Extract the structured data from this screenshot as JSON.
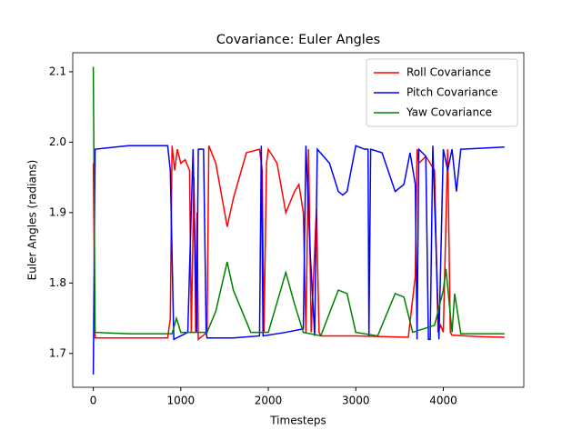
{
  "chart_data": {
    "type": "line",
    "title": "Covariance: Euler Angles",
    "xlabel": "Timesteps",
    "ylabel": "Euler Angles (radians)",
    "xlim": [
      -235,
      4920
    ],
    "ylim": [
      1.652,
      2.127
    ],
    "xticks": [
      0,
      1000,
      2000,
      3000,
      4000
    ],
    "yticks": [
      1.7,
      1.8,
      1.9,
      {
        "value": 2.0,
        "label": "2.0"
      },
      2.1
    ],
    "legend": "upper right",
    "series": [
      {
        "name": "Roll Covariance",
        "color": "#ff0000",
        "x": [
          0,
          20,
          400,
          850,
          880,
          900,
          930,
          960,
          1000,
          1050,
          1100,
          1120,
          1150,
          1170,
          1185,
          1200,
          1250,
          1300,
          1320,
          1400,
          1530,
          1600,
          1750,
          1900,
          1930,
          1950,
          1980,
          2000,
          2100,
          2200,
          2300,
          2350,
          2400,
          2430,
          2460,
          2490,
          2550,
          2580,
          2600,
          3000,
          3600,
          3680,
          3700,
          3720,
          3800,
          3900,
          3940,
          3970,
          4000,
          4050,
          4080,
          4100,
          4400,
          4700
        ],
        "values": [
          1.97,
          1.722,
          1.722,
          1.722,
          1.75,
          1.995,
          1.96,
          1.99,
          1.97,
          1.975,
          1.96,
          1.73,
          1.95,
          1.73,
          1.9,
          1.72,
          1.725,
          1.73,
          1.995,
          1.97,
          1.88,
          1.92,
          1.985,
          1.99,
          1.96,
          1.73,
          1.97,
          1.99,
          1.97,
          1.9,
          1.93,
          1.94,
          1.9,
          1.73,
          1.99,
          1.73,
          1.905,
          1.73,
          1.725,
          1.725,
          1.723,
          1.81,
          1.99,
          1.97,
          1.98,
          1.96,
          1.73,
          1.74,
          1.73,
          1.99,
          1.73,
          1.726,
          1.724,
          1.723
        ]
      },
      {
        "name": "Pitch Covariance",
        "color": "#0000ff",
        "x": [
          0,
          20,
          400,
          850,
          880,
          920,
          1000,
          1080,
          1100,
          1140,
          1180,
          1200,
          1260,
          1290,
          1300,
          1600,
          1900,
          1920,
          1940,
          2200,
          2400,
          2430,
          2480,
          2530,
          2560,
          2700,
          2800,
          2850,
          2900,
          3000,
          3100,
          3140,
          3150,
          3170,
          3300,
          3450,
          3550,
          3620,
          3680,
          3700,
          3720,
          3800,
          3830,
          3850,
          3880,
          3950,
          4000,
          4050,
          4100,
          4150,
          4200,
          4700
        ],
        "values": [
          1.67,
          1.99,
          1.995,
          1.995,
          1.96,
          1.72,
          1.725,
          1.73,
          1.82,
          1.99,
          1.73,
          1.99,
          1.99,
          1.73,
          1.722,
          1.722,
          1.725,
          1.995,
          1.725,
          1.73,
          1.735,
          1.995,
          1.84,
          1.725,
          1.99,
          1.97,
          1.93,
          1.925,
          1.93,
          1.995,
          1.99,
          1.99,
          1.725,
          1.99,
          1.985,
          1.93,
          1.94,
          1.985,
          1.94,
          1.72,
          1.99,
          1.98,
          1.72,
          1.72,
          1.995,
          1.72,
          1.99,
          1.96,
          1.99,
          1.93,
          1.99,
          1.993
        ]
      },
      {
        "name": "Yaw Covariance",
        "color": "#008000",
        "x": [
          0,
          20,
          400,
          900,
          950,
          1000,
          1300,
          1400,
          1530,
          1600,
          1800,
          2000,
          2200,
          2300,
          2400,
          2600,
          2800,
          2900,
          3000,
          3250,
          3450,
          3550,
          3650,
          3900,
          4000,
          4030,
          4100,
          4130,
          4200,
          4700
        ],
        "values": [
          2.107,
          1.73,
          1.728,
          1.728,
          1.75,
          1.73,
          1.73,
          1.76,
          1.83,
          1.79,
          1.73,
          1.73,
          1.815,
          1.77,
          1.73,
          1.725,
          1.79,
          1.785,
          1.73,
          1.725,
          1.785,
          1.78,
          1.73,
          1.74,
          1.79,
          1.82,
          1.73,
          1.785,
          1.728,
          1.728
        ]
      }
    ]
  }
}
